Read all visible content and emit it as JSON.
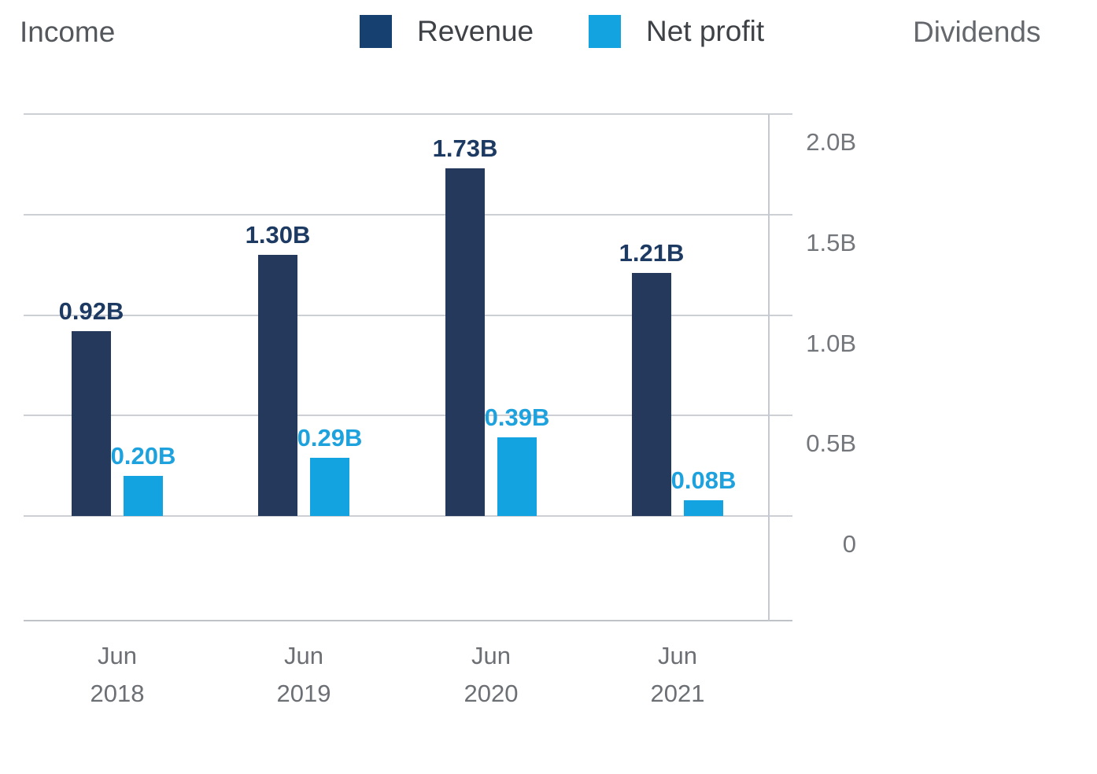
{
  "header": {
    "income_label": "Income",
    "dividends_label": "Dividends",
    "legend": [
      {
        "name": "Revenue",
        "swatch_color": "#15406F"
      },
      {
        "name": "Net profit",
        "swatch_color": "#12A3E0"
      }
    ]
  },
  "colors": {
    "revenue_bar": "#24395B",
    "revenue_value_label": "#1D3A63",
    "net_profit_bar": "#12A3E0",
    "net_profit_value_label": "#1EA2DE",
    "gridline": "#CCCFD4",
    "axis_line": "#C6CAD0",
    "axis_text": "#73767B",
    "category_text": "#6C6F74",
    "income_tab_text": "#54575C",
    "dividends_tab_text": "#64676C",
    "legend_text": "#3E4247"
  },
  "chart_data": {
    "type": "bar",
    "title": "Income",
    "categories": [
      "Jun 2018",
      "Jun 2019",
      "Jun 2020",
      "Jun 2021"
    ],
    "series": [
      {
        "name": "Revenue",
        "color": "#24395B",
        "label_color": "#1D3A63",
        "values": [
          0.92,
          1.3,
          1.73,
          1.21
        ],
        "data_labels": [
          "0.92B",
          "1.30B",
          "1.73B",
          "1.21B"
        ]
      },
      {
        "name": "Net profit",
        "color": "#12A3E0",
        "label_color": "#1EA2DE",
        "values": [
          0.2,
          0.29,
          0.39,
          0.08
        ],
        "data_labels": [
          "0.20B",
          "0.29B",
          "0.39B",
          "0.08B"
        ]
      }
    ],
    "unit": "B",
    "y_axis": {
      "side": "right",
      "tick_labels": [
        "2.0B",
        "1.5B",
        "1.0B",
        "0.5B",
        "0"
      ],
      "tick_values": [
        2.0,
        1.5,
        1.0,
        0.5,
        0
      ],
      "min": -0.52,
      "max": 2.0
    },
    "grid": true,
    "legend_position": "top-center",
    "data_labels_shown": true
  }
}
